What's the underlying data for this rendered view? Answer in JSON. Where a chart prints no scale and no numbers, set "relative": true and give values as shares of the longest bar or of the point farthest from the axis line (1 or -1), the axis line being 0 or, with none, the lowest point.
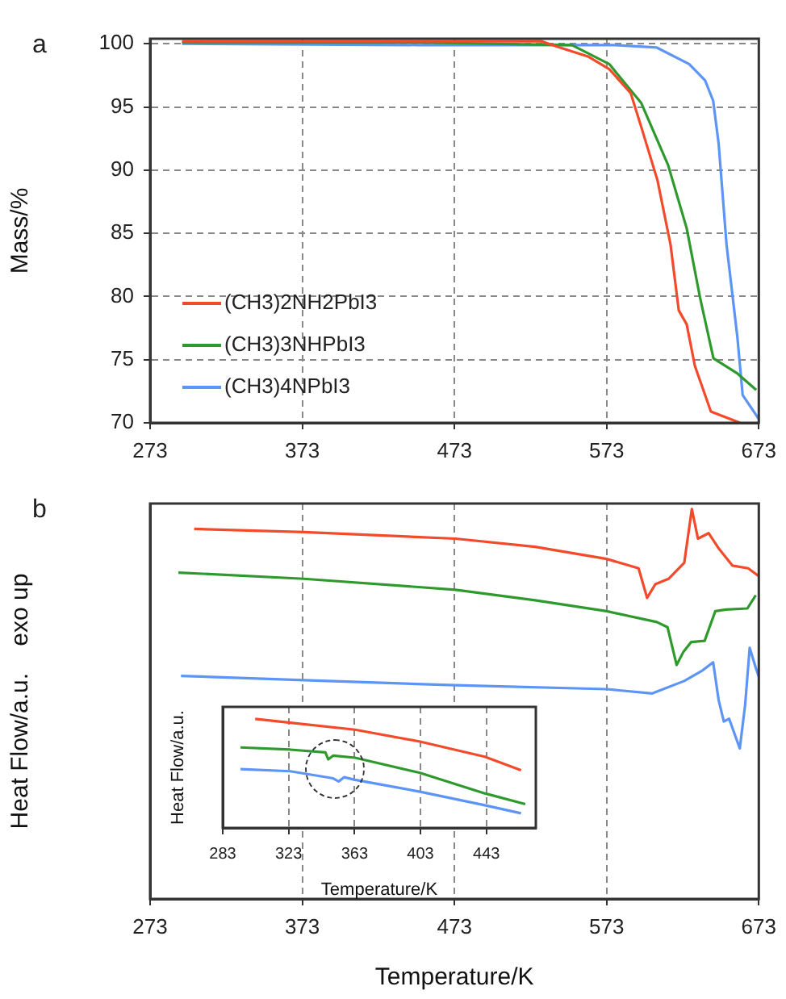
{
  "chart_data": [
    {
      "type": "line",
      "title": "a",
      "ylabel": "Mass/%",
      "xlim": [
        273,
        673
      ],
      "xticks": [
        273,
        373,
        473,
        573,
        673
      ],
      "ylim": [
        70,
        100.4
      ],
      "yticks": [
        70,
        75,
        80,
        85,
        90,
        95,
        100
      ],
      "grid": true,
      "legend": "bottom left",
      "series": [
        {
          "name": "(CH3)2NH2PbI3",
          "color": "#f24a2a",
          "x": [
            294,
            400,
            530,
            540,
            560.7,
            574.7,
            588.8,
            595.8,
            606.4,
            615,
            620.4,
            625.6,
            631,
            641.5,
            660.7
          ],
          "values": [
            100.2,
            100.2,
            100.2,
            99.8,
            99.0,
            98.0,
            96.1,
            93.4,
            89.2,
            84.1,
            78.9,
            77.8,
            74.5,
            70.9,
            70
          ]
        },
        {
          "name": "(CH3)3NHPbI3",
          "color": "#2e9a2e",
          "x": [
            294,
            450,
            550.2,
            574.7,
            595.8,
            613.4,
            625.6,
            634.4,
            643.2,
            659,
            671.3
          ],
          "values": [
            100.1,
            100.1,
            99.9,
            98.4,
            95.3,
            90.4,
            85.4,
            79.9,
            75.1,
            73.9,
            72.6
          ]
        },
        {
          "name": "(CH3)4NPbI3",
          "color": "#5c95f5",
          "x": [
            294,
            450,
            578,
            606,
            627.2,
            637.7,
            643,
            646.6,
            651.8,
            658.9,
            662.4,
            673
          ],
          "values": [
            100,
            99.9,
            99.9,
            99.7,
            98.4,
            97.1,
            95.5,
            92.1,
            84.1,
            76.8,
            72.2,
            70.3
          ]
        }
      ]
    },
    {
      "type": "line",
      "title": "b",
      "xlabel": "Temperature/K",
      "ylabel": "Heat Flow/a.u.    exo up",
      "relative": true,
      "xlim": [
        273,
        673
      ],
      "xticks": [
        273,
        373,
        473,
        573,
        673
      ],
      "grid": "x",
      "series": [
        {
          "color": "#f24a2a",
          "x": [
            302,
            374,
            473.6,
            526,
            573,
            594,
            599.6,
            605,
            613.7,
            624,
            629,
            633,
            640,
            647,
            655.6,
            666,
            673
          ],
          "values": [
            0.949,
            0.941,
            0.924,
            0.903,
            0.872,
            0.848,
            0.772,
            0.807,
            0.821,
            0.862,
            1.0,
            0.924,
            0.938,
            0.897,
            0.855,
            0.848,
            0.828
          ]
        },
        {
          "color": "#2e9a2e",
          "x": [
            291.6,
            374,
            473.6,
            526,
            573,
            606,
            613,
            619,
            623.5,
            628.6,
            637.4,
            644.4,
            651.4,
            665.5,
            671
          ],
          "values": [
            0.837,
            0.821,
            0.793,
            0.766,
            0.738,
            0.71,
            0.697,
            0.6,
            0.634,
            0.659,
            0.662,
            0.738,
            0.742,
            0.745,
            0.779
          ]
        },
        {
          "color": "#5c95f5",
          "x": [
            293.3,
            374,
            473.6,
            573,
            603,
            624,
            636,
            643,
            646.6,
            650,
            653.5,
            660.5,
            664,
            667,
            671,
            673
          ],
          "values": [
            0.572,
            0.561,
            0.548,
            0.538,
            0.527,
            0.559,
            0.586,
            0.607,
            0.51,
            0.455,
            0.462,
            0.386,
            0.497,
            0.644,
            0.593,
            0.57
          ]
        }
      ]
    },
    {
      "type": "line",
      "xlabel": "Temperature/K",
      "ylabel": "Heat Flow/a.u.",
      "relative": true,
      "xlim": [
        283,
        473
      ],
      "xticks": [
        283,
        323,
        363,
        403,
        443
      ],
      "grid": "x",
      "series": [
        {
          "color": "#f24a2a",
          "x": [
            302.7,
            324,
            363.3,
            402.7,
            442,
            464
          ],
          "values": [
            1.0,
            0.965,
            0.901,
            0.792,
            0.653,
            0.53
          ]
        },
        {
          "color": "#2e9a2e",
          "x": [
            293.8,
            324,
            345.3,
            347,
            350,
            363.3,
            402.7,
            442,
            466.6
          ],
          "values": [
            0.738,
            0.718,
            0.693,
            0.629,
            0.663,
            0.644,
            0.505,
            0.317,
            0.218
          ]
        },
        {
          "color": "#5c95f5",
          "x": [
            293.8,
            324,
            350,
            353.3,
            356.6,
            363.3,
            402.7,
            442,
            464
          ],
          "values": [
            0.54,
            0.52,
            0.455,
            0.426,
            0.465,
            0.441,
            0.332,
            0.208,
            0.134
          ]
        }
      ]
    }
  ]
}
